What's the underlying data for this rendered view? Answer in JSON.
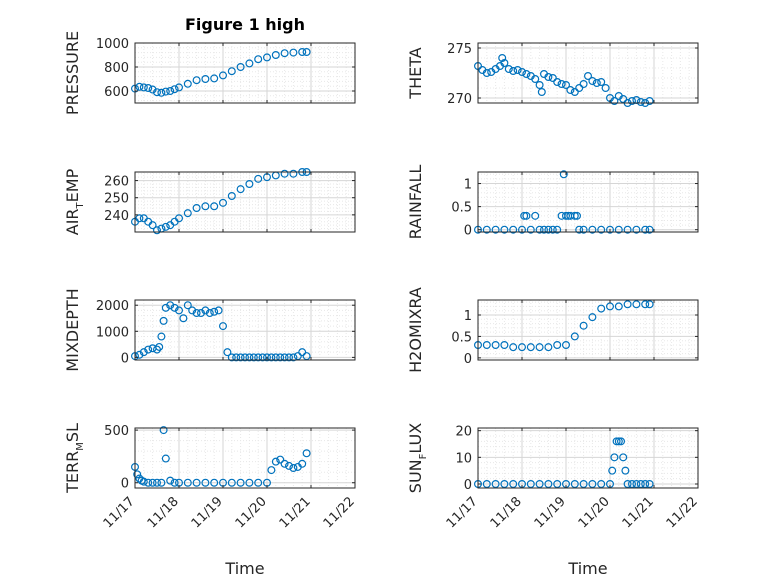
{
  "figure": {
    "title": "Figure 1 high",
    "xlabel": "Time"
  },
  "chart_data": [
    {
      "type": "scatter",
      "id": "pressure",
      "ylabel": "PRESSURE",
      "ylim": [
        500,
        1000
      ],
      "yticks": [
        600,
        800,
        1000
      ],
      "xlim": [
        0,
        5
      ],
      "xtick_labels": [],
      "grid": true,
      "x": [
        0,
        0.1,
        0.2,
        0.3,
        0.4,
        0.5,
        0.6,
        0.7,
        0.8,
        0.9,
        1.0,
        1.2,
        1.4,
        1.6,
        1.8,
        2.0,
        2.2,
        2.4,
        2.6,
        2.8,
        3.0,
        3.2,
        3.4,
        3.6,
        3.8,
        3.9
      ],
      "y": [
        620,
        635,
        630,
        625,
        612,
        590,
        585,
        595,
        600,
        615,
        630,
        660,
        690,
        700,
        705,
        730,
        765,
        800,
        830,
        865,
        880,
        900,
        915,
        920,
        925,
        925
      ]
    },
    {
      "type": "scatter",
      "id": "theta",
      "ylabel": "THETA",
      "ylim": [
        269.5,
        275.5
      ],
      "yticks": [
        270,
        275
      ],
      "xlim": [
        0,
        5
      ],
      "xtick_labels": [],
      "grid": true,
      "x": [
        0,
        0.1,
        0.2,
        0.3,
        0.4,
        0.5,
        0.55,
        0.6,
        0.7,
        0.8,
        0.9,
        1.0,
        1.1,
        1.2,
        1.3,
        1.4,
        1.45,
        1.5,
        1.6,
        1.7,
        1.8,
        1.9,
        2.0,
        2.1,
        2.2,
        2.3,
        2.4,
        2.5,
        2.6,
        2.7,
        2.8,
        2.9,
        3.0,
        3.1,
        3.2,
        3.3,
        3.4,
        3.5,
        3.6,
        3.7,
        3.8,
        3.9
      ],
      "y": [
        273.2,
        272.8,
        272.5,
        272.6,
        272.9,
        273.2,
        274.0,
        273.5,
        272.9,
        272.7,
        272.8,
        272.6,
        272.4,
        272.2,
        271.9,
        271.3,
        270.6,
        272.4,
        272.1,
        272.0,
        271.6,
        271.4,
        271.3,
        270.8,
        270.6,
        271.0,
        271.4,
        272.2,
        271.7,
        271.5,
        271.6,
        271.0,
        270.0,
        269.7,
        270.2,
        269.9,
        269.5,
        269.7,
        269.8,
        269.6,
        269.5,
        269.7
      ]
    },
    {
      "type": "scatter",
      "id": "airtemp",
      "ylabel": "AIR_TEMP",
      "ylim": [
        230,
        265
      ],
      "yticks": [
        240,
        250,
        260
      ],
      "xlim": [
        0,
        5
      ],
      "xtick_labels": [],
      "grid": true,
      "x": [
        0,
        0.1,
        0.2,
        0.3,
        0.4,
        0.5,
        0.6,
        0.7,
        0.8,
        0.9,
        1.0,
        1.2,
        1.4,
        1.6,
        1.8,
        2.0,
        2.2,
        2.4,
        2.6,
        2.8,
        3.0,
        3.2,
        3.4,
        3.6,
        3.8,
        3.9
      ],
      "y": [
        236,
        238,
        238,
        236,
        234,
        231,
        232,
        233,
        234,
        236,
        238,
        241,
        244,
        245,
        245,
        247,
        251,
        255,
        258,
        261,
        262,
        263,
        264,
        264,
        265,
        265
      ]
    },
    {
      "type": "scatter",
      "id": "rainfall",
      "ylabel": "RAINFALL",
      "ylim": [
        -0.05,
        1.25
      ],
      "yticks": [
        0,
        0.5,
        1
      ],
      "xlim": [
        0,
        5
      ],
      "xtick_labels": [],
      "grid": true,
      "x": [
        0,
        0.2,
        0.4,
        0.6,
        0.8,
        1.0,
        1.05,
        1.1,
        1.2,
        1.3,
        1.4,
        1.5,
        1.6,
        1.7,
        1.8,
        1.9,
        1.95,
        2.0,
        2.05,
        2.1,
        2.2,
        2.25,
        2.3,
        2.4,
        2.6,
        2.8,
        3.0,
        3.2,
        3.4,
        3.6,
        3.8,
        3.9
      ],
      "y": [
        0,
        0,
        0,
        0,
        0,
        0,
        0.3,
        0.3,
        0,
        0.3,
        0,
        0,
        0,
        0,
        0,
        0.3,
        1.2,
        0.3,
        0.3,
        0.3,
        0.3,
        0.3,
        0,
        0,
        0,
        0,
        0,
        0,
        0,
        0,
        0,
        0
      ]
    },
    {
      "type": "scatter",
      "id": "mixdepth",
      "ylabel": "MIXDEPTH",
      "ylim": [
        -100,
        2200
      ],
      "yticks": [
        0,
        1000,
        2000
      ],
      "xlim": [
        0,
        5
      ],
      "xtick_labels": [],
      "grid": true,
      "x": [
        0,
        0.1,
        0.2,
        0.3,
        0.4,
        0.5,
        0.55,
        0.6,
        0.65,
        0.7,
        0.8,
        0.9,
        1.0,
        1.1,
        1.2,
        1.3,
        1.4,
        1.5,
        1.6,
        1.7,
        1.8,
        1.9,
        2.0,
        2.1,
        2.2,
        2.3,
        2.4,
        2.5,
        2.6,
        2.7,
        2.8,
        2.9,
        3.0,
        3.1,
        3.2,
        3.3,
        3.4,
        3.5,
        3.6,
        3.7,
        3.8,
        3.9
      ],
      "y": [
        50,
        100,
        200,
        300,
        350,
        300,
        400,
        800,
        1400,
        1900,
        2000,
        1900,
        1800,
        1500,
        2000,
        1800,
        1700,
        1700,
        1800,
        1700,
        1750,
        1800,
        1200,
        200,
        0,
        0,
        0,
        0,
        0,
        0,
        0,
        0,
        0,
        0,
        0,
        0,
        0,
        0,
        0,
        50,
        200,
        50
      ]
    },
    {
      "type": "scatter",
      "id": "h2omixra",
      "ylabel": "H2OMIXRA",
      "ylim": [
        -0.05,
        1.35
      ],
      "yticks": [
        0,
        0.5,
        1
      ],
      "xlim": [
        0,
        5
      ],
      "xtick_labels": [],
      "grid": true,
      "x": [
        0,
        0.2,
        0.4,
        0.6,
        0.8,
        1.0,
        1.2,
        1.4,
        1.6,
        1.8,
        2.0,
        2.2,
        2.4,
        2.6,
        2.8,
        3.0,
        3.2,
        3.4,
        3.6,
        3.8,
        3.9
      ],
      "y": [
        0.3,
        0.3,
        0.3,
        0.3,
        0.25,
        0.25,
        0.25,
        0.25,
        0.25,
        0.3,
        0.3,
        0.5,
        0.75,
        0.95,
        1.15,
        1.2,
        1.2,
        1.25,
        1.25,
        1.25,
        1.25
      ]
    },
    {
      "type": "scatter",
      "id": "terrmsl",
      "ylabel": "TERR_MSL",
      "ylim": [
        -50,
        520
      ],
      "yticks": [
        0,
        500
      ],
      "xlim": [
        0,
        5
      ],
      "xtick_labels": [
        "11/17",
        "11/18",
        "11/19",
        "11/20",
        "11/21",
        "11/22"
      ],
      "grid": true,
      "x": [
        0,
        0.05,
        0.1,
        0.15,
        0.2,
        0.3,
        0.4,
        0.5,
        0.6,
        0.65,
        0.7,
        0.8,
        0.9,
        1.0,
        1.2,
        1.4,
        1.6,
        1.8,
        2.0,
        2.2,
        2.4,
        2.6,
        2.8,
        3.0,
        3.1,
        3.2,
        3.3,
        3.4,
        3.5,
        3.6,
        3.7,
        3.8,
        3.9
      ],
      "y": [
        150,
        80,
        40,
        20,
        10,
        0,
        0,
        0,
        0,
        500,
        230,
        20,
        0,
        0,
        0,
        0,
        0,
        0,
        0,
        0,
        0,
        0,
        0,
        0,
        120,
        200,
        220,
        180,
        160,
        140,
        150,
        180,
        280
      ]
    },
    {
      "type": "scatter",
      "id": "sunflux",
      "ylabel": "SUN_FLUX",
      "ylim": [
        -1.5,
        21
      ],
      "yticks": [
        0,
        10,
        20
      ],
      "xlim": [
        0,
        5
      ],
      "xtick_labels": [
        "11/17",
        "11/18",
        "11/19",
        "11/20",
        "11/21",
        "11/22"
      ],
      "grid": true,
      "x": [
        0,
        0.2,
        0.4,
        0.6,
        0.8,
        1.0,
        1.2,
        1.4,
        1.6,
        1.8,
        2.0,
        2.2,
        2.4,
        2.6,
        2.8,
        3.0,
        3.05,
        3.1,
        3.15,
        3.2,
        3.25,
        3.3,
        3.35,
        3.4,
        3.5,
        3.6,
        3.7,
        3.8,
        3.9
      ],
      "y": [
        0,
        0,
        0,
        0,
        0,
        0,
        0,
        0,
        0,
        0,
        0,
        0,
        0,
        0,
        0,
        0,
        5,
        10,
        16,
        16,
        16,
        10,
        5,
        0,
        0,
        0,
        0,
        0,
        0
      ]
    }
  ]
}
